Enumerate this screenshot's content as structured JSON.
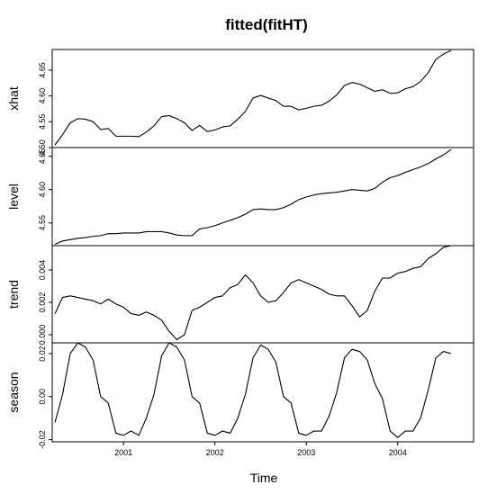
{
  "chart_data": {
    "type": "line",
    "title": "fitted(fitHT)",
    "xlabel": "Time",
    "xlim": [
      2000.22,
      2004.83
    ],
    "x_ticks": [
      2001,
      2002,
      2003,
      2004
    ],
    "x_tick_labels": [
      "2001",
      "2002",
      "2003",
      "2004"
    ],
    "x": [
      2000.25,
      2000.333,
      2000.417,
      2000.5,
      2000.583,
      2000.667,
      2000.75,
      2000.833,
      2000.917,
      2001.0,
      2001.083,
      2001.167,
      2001.25,
      2001.333,
      2001.417,
      2001.5,
      2001.583,
      2001.667,
      2001.75,
      2001.833,
      2001.917,
      2002.0,
      2002.083,
      2002.167,
      2002.25,
      2002.333,
      2002.417,
      2002.5,
      2002.583,
      2002.667,
      2002.75,
      2002.833,
      2002.917,
      2003.0,
      2003.083,
      2003.167,
      2003.25,
      2003.333,
      2003.417,
      2003.5,
      2003.583,
      2003.667,
      2003.75,
      2003.833,
      2003.917,
      2004.0,
      2004.083,
      2004.167,
      2004.25,
      2004.333,
      2004.417,
      2004.5,
      2004.583
    ],
    "panels": [
      {
        "name": "xhat",
        "ylabel": "xhat",
        "ylim": [
          4.5,
          4.69
        ],
        "y_ticks": [
          4.5,
          4.55,
          4.6,
          4.65
        ],
        "y_tick_labels": [
          "4.50",
          "4.55",
          "4.60",
          "4.65"
        ],
        "values": [
          4.505,
          4.525,
          4.548,
          4.556,
          4.555,
          4.55,
          4.535,
          4.537,
          4.522,
          4.522,
          4.522,
          4.521,
          4.53,
          4.542,
          4.56,
          4.562,
          4.556,
          4.548,
          4.533,
          4.543,
          4.531,
          4.534,
          4.54,
          4.542,
          4.555,
          4.57,
          4.596,
          4.601,
          4.596,
          4.591,
          4.58,
          4.58,
          4.573,
          4.576,
          4.58,
          4.582,
          4.59,
          4.602,
          4.62,
          4.626,
          4.623,
          4.616,
          4.609,
          4.612,
          4.605,
          4.606,
          4.614,
          4.618,
          4.628,
          4.645,
          4.671,
          4.681,
          4.688
        ]
      },
      {
        "name": "level",
        "ylabel": "level",
        "ylim": [
          4.516,
          4.663
        ],
        "y_ticks": [
          4.55,
          4.6,
          4.65
        ],
        "y_tick_labels": [
          "4.55",
          "4.60",
          "4.65"
        ],
        "values": [
          4.518,
          4.523,
          4.525,
          4.527,
          4.528,
          4.53,
          4.531,
          4.534,
          4.534,
          4.535,
          4.535,
          4.535,
          4.537,
          4.537,
          4.537,
          4.535,
          4.532,
          4.531,
          4.531,
          4.541,
          4.543,
          4.546,
          4.55,
          4.554,
          4.558,
          4.563,
          4.57,
          4.571,
          4.57,
          4.57,
          4.573,
          4.578,
          4.585,
          4.589,
          4.592,
          4.594,
          4.595,
          4.596,
          4.598,
          4.6,
          4.599,
          4.598,
          4.602,
          4.611,
          4.618,
          4.621,
          4.626,
          4.63,
          4.634,
          4.639,
          4.646,
          4.652,
          4.66
        ]
      },
      {
        "name": "trend",
        "ylabel": "trend",
        "ylim": [
          -0.0005,
          0.0055
        ],
        "y_ticks": [
          0.0,
          0.002,
          0.004
        ],
        "y_tick_labels": [
          "0.000",
          "0.002",
          "0.004"
        ],
        "values": [
          0.0013,
          0.0023,
          0.0024,
          0.0023,
          0.0022,
          0.0021,
          0.0019,
          0.0022,
          0.0019,
          0.0017,
          0.0013,
          0.0012,
          0.0014,
          0.0012,
          0.0009,
          0.0002,
          -0.0003,
          0.0,
          0.0015,
          0.0017,
          0.002,
          0.0023,
          0.0024,
          0.0029,
          0.0031,
          0.0037,
          0.0032,
          0.0024,
          0.002,
          0.0021,
          0.0026,
          0.0032,
          0.0034,
          0.0032,
          0.003,
          0.0028,
          0.0025,
          0.0024,
          0.0024,
          0.0018,
          0.0011,
          0.0015,
          0.0027,
          0.0035,
          0.0035,
          0.0038,
          0.0039,
          0.0041,
          0.0042,
          0.0047,
          0.005,
          0.0054,
          0.0055
        ]
      },
      {
        "name": "season",
        "ylabel": "season",
        "ylim": [
          -0.021,
          0.025
        ],
        "y_ticks": [
          -0.02,
          0.0,
          0.02
        ],
        "y_tick_labels": [
          "-0.02",
          "0.00",
          "0.02"
        ],
        "values": [
          -0.012,
          0.001,
          0.02,
          0.025,
          0.023,
          0.017,
          0.0,
          -0.003,
          -0.017,
          -0.018,
          -0.016,
          -0.018,
          -0.01,
          0.001,
          0.019,
          0.025,
          0.023,
          0.017,
          0.0,
          -0.003,
          -0.017,
          -0.018,
          -0.016,
          -0.017,
          -0.01,
          0.001,
          0.018,
          0.024,
          0.022,
          0.016,
          0.0,
          -0.003,
          -0.017,
          -0.018,
          -0.016,
          -0.016,
          -0.009,
          0.002,
          0.018,
          0.022,
          0.021,
          0.017,
          0.006,
          -0.001,
          -0.016,
          -0.019,
          -0.016,
          -0.016,
          -0.01,
          0.003,
          0.018,
          0.021,
          0.02
        ]
      }
    ],
    "grid": false,
    "legend": "none"
  }
}
